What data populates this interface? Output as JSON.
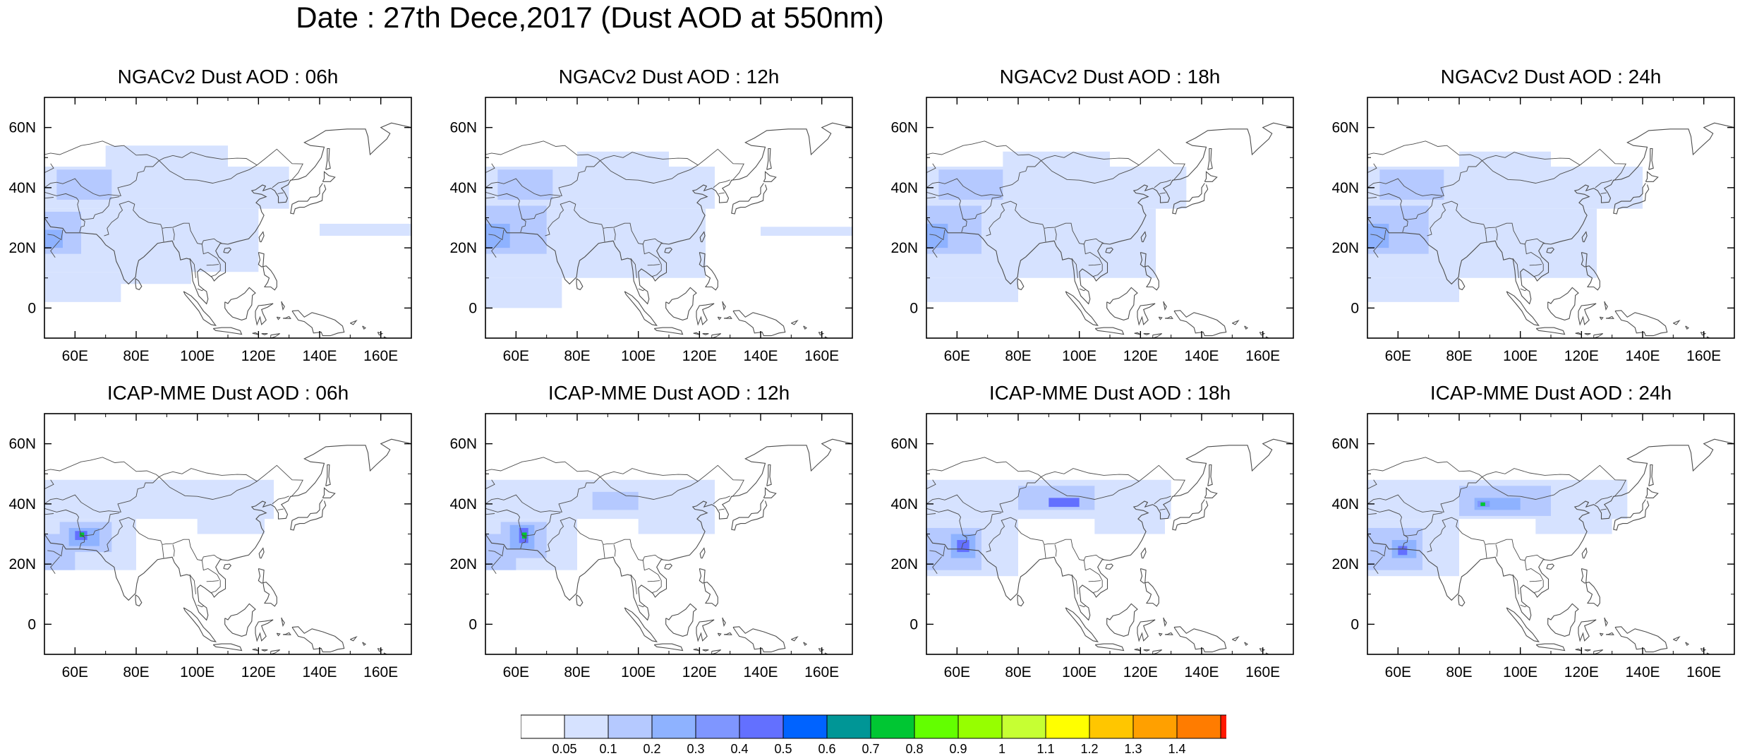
{
  "title": "Date : 27th Dece,2017 (Dust AOD at 550nm)",
  "panels": [
    {
      "id": "ngac-06",
      "title": "NGACv2 Dust AOD : 06h",
      "model": "NGACv2"
    },
    {
      "id": "ngac-12",
      "title": "NGACv2 Dust AOD : 12h",
      "model": "NGACv2"
    },
    {
      "id": "ngac-18",
      "title": "NGACv2 Dust AOD : 18h",
      "model": "NGACv2"
    },
    {
      "id": "ngac-24",
      "title": "NGACv2 Dust AOD : 24h",
      "model": "NGACv2"
    },
    {
      "id": "icap-06",
      "title": "ICAP-MME Dust AOD : 06h",
      "model": "ICAP-MME"
    },
    {
      "id": "icap-12",
      "title": "ICAP-MME Dust AOD : 12h",
      "model": "ICAP-MME"
    },
    {
      "id": "icap-18",
      "title": "ICAP-MME Dust AOD : 18h",
      "model": "ICAP-MME"
    },
    {
      "id": "icap-24",
      "title": "ICAP-MME Dust AOD : 24h",
      "model": "ICAP-MME"
    }
  ],
  "axes": {
    "lon_range": [
      50,
      170
    ],
    "lat_range": [
      -10,
      70
    ],
    "lon_ticks": [
      {
        "value": 60,
        "label": "60E"
      },
      {
        "value": 80,
        "label": "80E"
      },
      {
        "value": 100,
        "label": "100E"
      },
      {
        "value": 120,
        "label": "120E"
      },
      {
        "value": 140,
        "label": "140E"
      },
      {
        "value": 160,
        "label": "160E"
      }
    ],
    "lat_ticks": [
      {
        "value": 0,
        "label": "0"
      },
      {
        "value": 20,
        "label": "20N"
      },
      {
        "value": 40,
        "label": "40N"
      },
      {
        "value": 60,
        "label": "60N"
      }
    ]
  },
  "colorbar": {
    "labels": [
      "0.05",
      "0.1",
      "0.2",
      "0.3",
      "0.4",
      "0.5",
      "0.6",
      "0.7",
      "0.8",
      "0.9",
      "1",
      "1.1",
      "1.2",
      "1.3",
      "1.4"
    ],
    "colors": [
      "#ffffff",
      "#d6e2ff",
      "#b5c9ff",
      "#8eb2ff",
      "#7f96ff",
      "#6370ff",
      "#0063ff",
      "#009696",
      "#00c633",
      "#63ff00",
      "#96ff00",
      "#c6ff33",
      "#ffff00",
      "#ffc600",
      "#ffa000",
      "#ff7c00",
      "#ff1900"
    ]
  },
  "field_colors": {
    "light": "#d6e2ff",
    "mid": "#b5c9ff",
    "strong": "#8eb2ff",
    "deep": "#7f96ff",
    "peak": "#6370ff",
    "green": "#00c633",
    "coast": "#4d4d4d"
  },
  "dust_fields": {
    "ngac-06": [
      {
        "lon": [
          50,
          130
        ],
        "lat": [
          33,
          47
        ],
        "level": "light"
      },
      {
        "lon": [
          70,
          110
        ],
        "lat": [
          47,
          54
        ],
        "level": "light"
      },
      {
        "lon": [
          50,
          120
        ],
        "lat": [
          12,
          33
        ],
        "level": "light"
      },
      {
        "lon": [
          50,
          75
        ],
        "lat": [
          2,
          12
        ],
        "level": "light"
      },
      {
        "lon": [
          75,
          98
        ],
        "lat": [
          8,
          20
        ],
        "level": "light"
      },
      {
        "lon": [
          140,
          170
        ],
        "lat": [
          24,
          28
        ],
        "level": "light"
      },
      {
        "lon": [
          50,
          62
        ],
        "lat": [
          18,
          32
        ],
        "level": "mid"
      },
      {
        "lon": [
          54,
          72
        ],
        "lat": [
          36,
          46
        ],
        "level": "mid"
      },
      {
        "lon": [
          50,
          56
        ],
        "lat": [
          20,
          26
        ],
        "level": "strong"
      }
    ],
    "ngac-12": [
      {
        "lon": [
          50,
          125
        ],
        "lat": [
          33,
          47
        ],
        "level": "light"
      },
      {
        "lon": [
          80,
          110
        ],
        "lat": [
          47,
          52
        ],
        "level": "light"
      },
      {
        "lon": [
          50,
          122
        ],
        "lat": [
          10,
          33
        ],
        "level": "light"
      },
      {
        "lon": [
          50,
          75
        ],
        "lat": [
          0,
          10
        ],
        "level": "light"
      },
      {
        "lon": [
          140,
          170
        ],
        "lat": [
          24,
          27
        ],
        "level": "light"
      },
      {
        "lon": [
          50,
          70
        ],
        "lat": [
          18,
          34
        ],
        "level": "mid"
      },
      {
        "lon": [
          54,
          72
        ],
        "lat": [
          36,
          46
        ],
        "level": "mid"
      },
      {
        "lon": [
          50,
          58
        ],
        "lat": [
          20,
          28
        ],
        "level": "strong"
      }
    ],
    "ngac-18": [
      {
        "lon": [
          50,
          135
        ],
        "lat": [
          33,
          47
        ],
        "level": "light"
      },
      {
        "lon": [
          75,
          110
        ],
        "lat": [
          47,
          52
        ],
        "level": "light"
      },
      {
        "lon": [
          50,
          125
        ],
        "lat": [
          10,
          33
        ],
        "level": "light"
      },
      {
        "lon": [
          50,
          80
        ],
        "lat": [
          2,
          10
        ],
        "level": "light"
      },
      {
        "lon": [
          50,
          68
        ],
        "lat": [
          18,
          34
        ],
        "level": "mid"
      },
      {
        "lon": [
          54,
          75
        ],
        "lat": [
          36,
          46
        ],
        "level": "mid"
      },
      {
        "lon": [
          50,
          57
        ],
        "lat": [
          20,
          28
        ],
        "level": "strong"
      }
    ],
    "ngac-24": [
      {
        "lon": [
          50,
          140
        ],
        "lat": [
          33,
          47
        ],
        "level": "light"
      },
      {
        "lon": [
          80,
          110
        ],
        "lat": [
          47,
          52
        ],
        "level": "light"
      },
      {
        "lon": [
          50,
          125
        ],
        "lat": [
          10,
          33
        ],
        "level": "light"
      },
      {
        "lon": [
          50,
          80
        ],
        "lat": [
          2,
          10
        ],
        "level": "light"
      },
      {
        "lon": [
          50,
          70
        ],
        "lat": [
          18,
          34
        ],
        "level": "mid"
      },
      {
        "lon": [
          54,
          75
        ],
        "lat": [
          36,
          46
        ],
        "level": "mid"
      },
      {
        "lon": [
          50,
          57
        ],
        "lat": [
          20,
          28
        ],
        "level": "strong"
      }
    ],
    "icap-06": [
      {
        "lon": [
          50,
          125
        ],
        "lat": [
          35,
          48
        ],
        "level": "light"
      },
      {
        "lon": [
          50,
          80
        ],
        "lat": [
          18,
          35
        ],
        "level": "light"
      },
      {
        "lon": [
          100,
          122
        ],
        "lat": [
          30,
          40
        ],
        "level": "light"
      },
      {
        "lon": [
          55,
          72
        ],
        "lat": [
          24,
          34
        ],
        "level": "mid"
      },
      {
        "lon": [
          50,
          60
        ],
        "lat": [
          18,
          30
        ],
        "level": "mid"
      },
      {
        "lon": [
          58,
          68
        ],
        "lat": [
          26,
          32
        ],
        "level": "strong"
      },
      {
        "lon": [
          60,
          64
        ],
        "lat": [
          28,
          31
        ],
        "level": "peak"
      },
      {
        "lon": [
          61.5,
          63
        ],
        "lat": [
          29,
          30.5
        ],
        "level": "green"
      }
    ],
    "icap-12": [
      {
        "lon": [
          50,
          125
        ],
        "lat": [
          35,
          48
        ],
        "level": "light"
      },
      {
        "lon": [
          50,
          80
        ],
        "lat": [
          18,
          35
        ],
        "level": "light"
      },
      {
        "lon": [
          100,
          125
        ],
        "lat": [
          30,
          40
        ],
        "level": "light"
      },
      {
        "lon": [
          55,
          70
        ],
        "lat": [
          22,
          34
        ],
        "level": "mid"
      },
      {
        "lon": [
          50,
          60
        ],
        "lat": [
          18,
          30
        ],
        "level": "mid"
      },
      {
        "lon": [
          85,
          100
        ],
        "lat": [
          38,
          44
        ],
        "level": "mid"
      },
      {
        "lon": [
          58,
          66
        ],
        "lat": [
          25,
          33
        ],
        "level": "strong"
      },
      {
        "lon": [
          61,
          64
        ],
        "lat": [
          27,
          32
        ],
        "level": "peak"
      },
      {
        "lon": [
          62,
          63.5
        ],
        "lat": [
          28.5,
          30.5
        ],
        "level": "green"
      }
    ],
    "icap-18": [
      {
        "lon": [
          50,
          130
        ],
        "lat": [
          35,
          48
        ],
        "level": "light"
      },
      {
        "lon": [
          50,
          80
        ],
        "lat": [
          16,
          35
        ],
        "level": "light"
      },
      {
        "lon": [
          105,
          128
        ],
        "lat": [
          30,
          40
        ],
        "level": "light"
      },
      {
        "lon": [
          80,
          105
        ],
        "lat": [
          38,
          46
        ],
        "level": "mid"
      },
      {
        "lon": [
          50,
          68
        ],
        "lat": [
          18,
          32
        ],
        "level": "mid"
      },
      {
        "lon": [
          58,
          66
        ],
        "lat": [
          22,
          30
        ],
        "level": "strong"
      },
      {
        "lon": [
          90,
          100
        ],
        "lat": [
          39,
          42
        ],
        "level": "peak"
      },
      {
        "lon": [
          60,
          64
        ],
        "lat": [
          24,
          28
        ],
        "level": "peak"
      }
    ],
    "icap-24": [
      {
        "lon": [
          50,
          135
        ],
        "lat": [
          35,
          48
        ],
        "level": "light"
      },
      {
        "lon": [
          50,
          80
        ],
        "lat": [
          16,
          35
        ],
        "level": "light"
      },
      {
        "lon": [
          105,
          130
        ],
        "lat": [
          30,
          40
        ],
        "level": "light"
      },
      {
        "lon": [
          80,
          110
        ],
        "lat": [
          36,
          46
        ],
        "level": "mid"
      },
      {
        "lon": [
          50,
          68
        ],
        "lat": [
          18,
          32
        ],
        "level": "mid"
      },
      {
        "lon": [
          85,
          100
        ],
        "lat": [
          38,
          42
        ],
        "level": "strong"
      },
      {
        "lon": [
          58,
          66
        ],
        "lat": [
          22,
          28
        ],
        "level": "strong"
      },
      {
        "lon": [
          60,
          63
        ],
        "lat": [
          23,
          26
        ],
        "level": "peak"
      },
      {
        "lon": [
          86,
          90
        ],
        "lat": [
          39,
          41
        ],
        "level": "deep"
      },
      {
        "lon": [
          87,
          88.5
        ],
        "lat": [
          39.3,
          40.5
        ],
        "level": "green"
      }
    ]
  }
}
